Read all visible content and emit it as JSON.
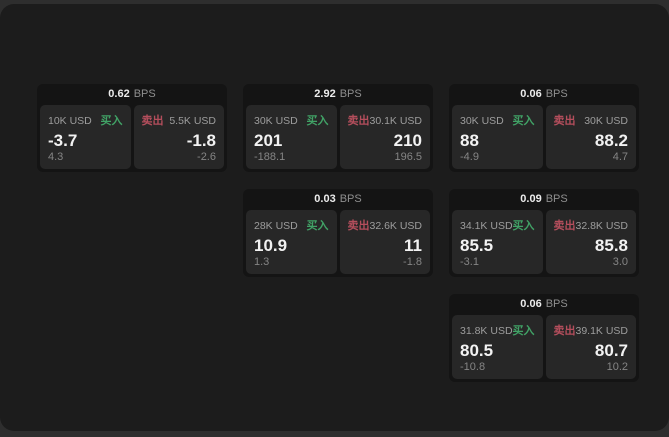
{
  "colors": {
    "accent_green": "#41a266",
    "accent_red": "#b44e5c",
    "panel_bg": "#1c1c1c",
    "card_bg": "#141414",
    "tile_bg": "#272727",
    "outer_bg": "#2e2e2e"
  },
  "cards": [
    {
      "bps": "0.62",
      "unit": "BPS",
      "buy_amount": "10K USD",
      "buy_label": "买入",
      "buy_price": "-3.7",
      "buy_change": "4.3",
      "sell_label": "卖出",
      "sell_amount": "5.5K USD",
      "sell_price": "-1.8",
      "sell_change": "-2.6"
    },
    {
      "bps": "2.92",
      "unit": "BPS",
      "buy_amount": "30K USD",
      "buy_label": "买入",
      "buy_price": "201",
      "buy_change": "-188.1",
      "sell_label": "卖出",
      "sell_amount": "30.1K USD",
      "sell_price": "210",
      "sell_change": "196.5"
    },
    {
      "bps": "0.06",
      "unit": "BPS",
      "buy_amount": "30K USD",
      "buy_label": "买入",
      "buy_price": "88",
      "buy_change": "-4.9",
      "sell_label": "卖出",
      "sell_amount": "30K USD",
      "sell_price": "88.2",
      "sell_change": "4.7"
    },
    {
      "bps": "0.03",
      "unit": "BPS",
      "buy_amount": "28K USD",
      "buy_label": "买入",
      "buy_price": "10.9",
      "buy_change": "1.3",
      "sell_label": "卖出",
      "sell_amount": "32.6K USD",
      "sell_price": "11",
      "sell_change": "-1.8"
    },
    {
      "bps": "0.09",
      "unit": "BPS",
      "buy_amount": "34.1K USD",
      "buy_label": "买入",
      "buy_price": "85.5",
      "buy_change": "-3.1",
      "sell_label": "卖出",
      "sell_amount": "32.8K USD",
      "sell_price": "85.8",
      "sell_change": "3.0"
    },
    {
      "bps": "0.06",
      "unit": "BPS",
      "buy_amount": "31.8K USD",
      "buy_label": "买入",
      "buy_price": "80.5",
      "buy_change": "-10.8",
      "sell_label": "卖出",
      "sell_amount": "39.1K USD",
      "sell_price": "80.7",
      "sell_change": "10.2"
    }
  ]
}
